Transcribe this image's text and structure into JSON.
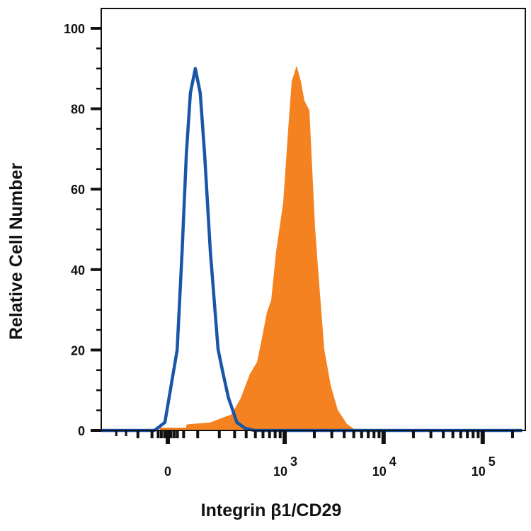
{
  "chart_data": {
    "type": "area",
    "title": "",
    "xlabel": "Integrin β1/CD29",
    "ylabel": "Relative Cell Number",
    "x_scale": "biexponential",
    "xlim": [
      -300,
      250000
    ],
    "ylim": [
      0,
      100
    ],
    "grid": false,
    "legend": "none",
    "y_ticks": [
      0,
      20,
      40,
      60,
      80,
      100
    ],
    "y_tick_labels": [
      "0",
      "20",
      "40",
      "60",
      "80",
      "100"
    ],
    "x_ticks": [
      0,
      1000,
      10000,
      100000
    ],
    "x_tick_labels": [
      {
        "base": "0",
        "exp": ""
      },
      {
        "base": "10",
        "exp": "3"
      },
      {
        "base": "10",
        "exp": "4"
      },
      {
        "base": "10",
        "exp": "5"
      }
    ],
    "series": [
      {
        "style": "filled",
        "color": "#F58220",
        "points": [
          [
            -26,
            0
          ],
          [
            -25,
            0.7
          ],
          [
            58,
            0.7
          ],
          [
            60,
            1.5
          ],
          [
            154,
            2
          ],
          [
            277,
            4
          ],
          [
            349,
            8
          ],
          [
            437,
            14
          ],
          [
            520,
            17
          ],
          [
            585,
            23
          ],
          [
            658,
            29.4
          ],
          [
            728,
            32.4
          ],
          [
            818,
            44.5
          ],
          [
            967,
            56.7
          ],
          [
            1085,
            74.8
          ],
          [
            1178,
            86.8
          ],
          [
            1323,
            90.7
          ],
          [
            1462,
            86.8
          ],
          [
            1587,
            82
          ],
          [
            1781,
            79.6
          ],
          [
            1873,
            68.7
          ],
          [
            2033,
            50.5
          ],
          [
            2208,
            38.4
          ],
          [
            2519,
            20.2
          ],
          [
            2922,
            11.3
          ],
          [
            3445,
            5.1
          ],
          [
            4270,
            1.6
          ],
          [
            5280,
            0
          ]
        ]
      },
      {
        "style": "outline",
        "color": "#1A56A8",
        "points": [
          [
            -300,
            0
          ],
          [
            -42,
            0
          ],
          [
            -9,
            2
          ],
          [
            29,
            20
          ],
          [
            45,
            44.5
          ],
          [
            59,
            68.7
          ],
          [
            73,
            83.9
          ],
          [
            91,
            90
          ],
          [
            110,
            83.9
          ],
          [
            128,
            68.7
          ],
          [
            154,
            44.5
          ],
          [
            193,
            20.2
          ],
          [
            221,
            14.3
          ],
          [
            256,
            8.1
          ],
          [
            318,
            2
          ],
          [
            394,
            0.5
          ],
          [
            493,
            0
          ],
          [
            250000,
            0
          ]
        ]
      }
    ]
  }
}
